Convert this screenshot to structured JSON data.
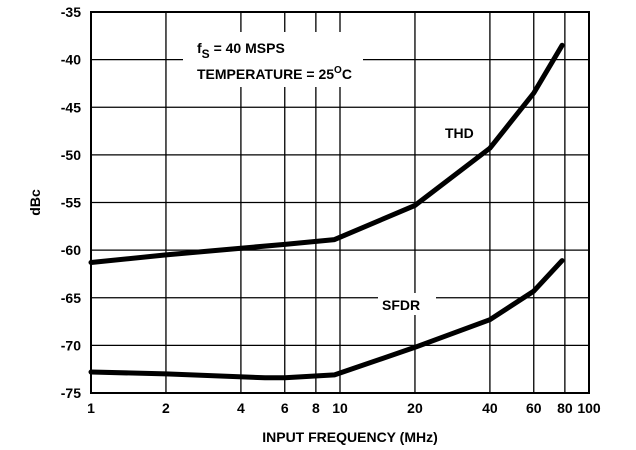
{
  "chart_data": {
    "type": "line",
    "title": "",
    "xlabel": "INPUT FREQUENCY (MHz)",
    "ylabel": "dBc",
    "x_scale": "log",
    "xlim": [
      1,
      100
    ],
    "ylim": [
      -75,
      -35
    ],
    "grid": true,
    "x_ticks": [
      1,
      2,
      4,
      6,
      8,
      10,
      20,
      40,
      60,
      80,
      100
    ],
    "x_tick_labels": [
      "1",
      "2",
      "4",
      "6",
      "8",
      "10",
      "20",
      "40",
      "60",
      "80",
      "100"
    ],
    "y_ticks": [
      -35,
      -40,
      -45,
      -50,
      -55,
      -60,
      -65,
      -70,
      -75
    ],
    "y_tick_labels": [
      "-35",
      "-40",
      "-45",
      "-50",
      "-55",
      "-60",
      "-65",
      "-70",
      "-75"
    ],
    "annotation": {
      "line1_main": "f",
      "line1_sub": "S",
      "line1_rest": " = 40 MSPS",
      "line2_main": "TEMPERATURE = 25",
      "line2_sup": "O",
      "line2_rest": "C"
    },
    "series": [
      {
        "name": "THD",
        "x": [
          1,
          2,
          4,
          6,
          9.5,
          20,
          40,
          60,
          78
        ],
        "y": [
          -61.3,
          -60.5,
          -59.8,
          -59.4,
          -58.9,
          -55.3,
          -49.3,
          -43.5,
          -38.5
        ]
      },
      {
        "name": "SFDR",
        "x": [
          1,
          2,
          5,
          6,
          9.5,
          20,
          40,
          60,
          78
        ],
        "y": [
          -72.8,
          -73.0,
          -73.4,
          -73.4,
          -73.1,
          -70.2,
          -67.3,
          -64.3,
          -61.1
        ]
      }
    ]
  }
}
